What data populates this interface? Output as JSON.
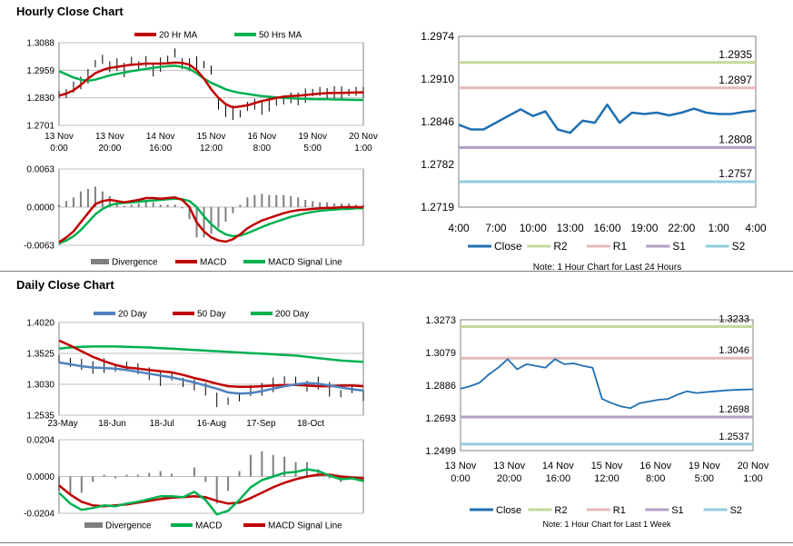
{
  "sections": {
    "hourly_title": "Hourly Close Chart",
    "daily_title": "Daily Close Chart"
  },
  "colors": {
    "red": "#c00000",
    "green": "#00b050",
    "blue": "#4f81bd",
    "close_blue": "#1f6fb2",
    "r2": "#c4d79b",
    "r1": "#e6b8b7",
    "s1": "#b1a0c7",
    "s2": "#92cddc",
    "divergence": "#7f7f7f",
    "price": "#000000"
  },
  "chart_data": [
    {
      "id": "hourly_price",
      "type": "line",
      "legend": [
        "20 Hr MA",
        "50 Hrs MA"
      ],
      "legend_placement": "top",
      "ylim": [
        1.2701,
        1.3088
      ],
      "yticks": [
        "1.3088",
        "1.2959",
        "1.2830",
        "1.2701"
      ],
      "xticks": [
        [
          "13 Nov",
          "0:00"
        ],
        [
          "13 Nov",
          "20:00"
        ],
        [
          "14 Nov",
          "16:00"
        ],
        [
          "15 Nov",
          "12:00"
        ],
        [
          "16 Nov",
          "8:00"
        ],
        [
          "19 Nov",
          "5:00"
        ],
        [
          "20 Nov",
          "1:00"
        ]
      ],
      "close": [
        1.2845,
        1.285,
        1.288,
        1.29,
        1.293,
        1.299,
        1.301,
        1.2975,
        1.2985,
        1.296,
        1.3005,
        1.298,
        1.3,
        1.296,
        1.2985,
        1.301,
        1.304,
        1.299,
        1.2985,
        1.299,
        1.2985,
        1.296,
        1.28,
        1.277,
        1.276,
        1.2755,
        1.279,
        1.28,
        1.278,
        1.28,
        1.281,
        1.282,
        1.283,
        1.2825,
        1.284,
        1.2855,
        1.286,
        1.285,
        1.2855,
        1.285,
        1.2855,
        1.286,
        1.2855
      ],
      "ma20": [
        1.284,
        1.285,
        1.2865,
        1.289,
        1.292,
        1.2945,
        1.296,
        1.297,
        1.2975,
        1.298,
        1.2985,
        1.2987,
        1.299,
        1.299,
        1.299,
        1.2992,
        1.2995,
        1.2993,
        1.2985,
        1.296,
        1.292,
        1.287,
        1.283,
        1.28,
        1.2785,
        1.279,
        1.2795,
        1.2805,
        1.2815,
        1.2822,
        1.283,
        1.2835,
        1.2838,
        1.284,
        1.2843,
        1.2847,
        1.285,
        1.2852,
        1.2853,
        1.2853,
        1.2854,
        1.2855,
        1.2856
      ],
      "ma50": [
        1.2955,
        1.294,
        1.2925,
        1.2915,
        1.291,
        1.2915,
        1.2925,
        1.2935,
        1.2942,
        1.2948,
        1.2955,
        1.296,
        1.2965,
        1.297,
        1.2975,
        1.2978,
        1.298,
        1.2975,
        1.2965,
        1.2945,
        1.292,
        1.29,
        1.2885,
        1.287,
        1.286,
        1.2853,
        1.2848,
        1.2843,
        1.2838,
        1.2835,
        1.2832,
        1.283,
        1.2828,
        1.2826,
        1.2825,
        1.2824,
        1.2823,
        1.2823,
        1.2822,
        1.2822,
        1.2821,
        1.282,
        1.282
      ]
    },
    {
      "id": "hourly_macd",
      "type": "line",
      "legend": [
        "Divergence",
        "MACD",
        "MACD Signal Line"
      ],
      "legend_placement": "bottom",
      "ylim": [
        -0.0063,
        0.0063
      ],
      "yticks": [
        "0.0063",
        "0.0000",
        "-0.0063"
      ],
      "macd": [
        -0.0058,
        -0.005,
        -0.004,
        -0.0025,
        -0.001,
        0.0005,
        0.001,
        0.0012,
        0.001,
        0.0008,
        0.001,
        0.0012,
        0.0015,
        0.0015,
        0.0014,
        0.0015,
        0.0016,
        0.0012,
        0.0,
        -0.0025,
        -0.004,
        -0.005,
        -0.0055,
        -0.0057,
        -0.0053,
        -0.0045,
        -0.0035,
        -0.0028,
        -0.0022,
        -0.0018,
        -0.0014,
        -0.001,
        -0.0007,
        -0.0005,
        -0.0004,
        -0.0003,
        -0.0002,
        -0.0001,
        -0.0001,
        0.0,
        0.0,
        0.0,
        0.0
      ],
      "signal": [
        -0.006,
        -0.0055,
        -0.0048,
        -0.0038,
        -0.0025,
        -0.0012,
        -0.0003,
        0.0003,
        0.0006,
        0.0007,
        0.0008,
        0.0009,
        0.001,
        0.0011,
        0.0012,
        0.0013,
        0.0014,
        0.0013,
        0.001,
        0.0,
        -0.0015,
        -0.0028,
        -0.0038,
        -0.0045,
        -0.0048,
        -0.0047,
        -0.0043,
        -0.0038,
        -0.0033,
        -0.0028,
        -0.0024,
        -0.002,
        -0.0016,
        -0.0013,
        -0.001,
        -0.0008,
        -0.0006,
        -0.0005,
        -0.0004,
        -0.0003,
        -0.0003,
        -0.0002,
        -0.0002
      ]
    },
    {
      "id": "hourly_pivots",
      "type": "line",
      "legend": [
        "Close",
        "R2",
        "R1",
        "S1",
        "S2"
      ],
      "legend_placement": "bottom",
      "ylim": [
        1.2719,
        1.2974
      ],
      "yticks": [
        "1.2974",
        "1.2910",
        "1.2846",
        "1.2782",
        "1.2719"
      ],
      "xticks": [
        "4:00",
        "7:00",
        "10:00",
        "13:00",
        "16:00",
        "19:00",
        "22:00",
        "1:00",
        "4:00"
      ],
      "levels": {
        "R2": 1.2935,
        "R1": 1.2897,
        "S1": 1.2808,
        "S2": 1.2757
      },
      "level_labels": {
        "R2": "1.2935",
        "R1": "1.2897",
        "S1": "1.2808",
        "S2": "1.2757"
      },
      "close": [
        1.2842,
        1.2835,
        1.2835,
        1.2845,
        1.2855,
        1.2865,
        1.2855,
        1.2862,
        1.2835,
        1.283,
        1.2848,
        1.2845,
        1.2872,
        1.2845,
        1.286,
        1.2858,
        1.286,
        1.2856,
        1.286,
        1.2866,
        1.286,
        1.2858,
        1.2858,
        1.2861,
        1.2863
      ],
      "note": "Note: 1 Hour Chart for Last 24 Hours"
    },
    {
      "id": "daily_price",
      "type": "line",
      "legend": [
        "20 Day",
        "50 Day",
        "200 Day"
      ],
      "legend_placement": "top",
      "ylim": [
        1.2535,
        1.402
      ],
      "yticks": [
        "1.4020",
        "1.3525",
        "1.3030",
        "1.2535"
      ],
      "xticks": [
        "23-May",
        "18-Jun",
        "18-Jul",
        "16-Aug",
        "17-Sep",
        "18-Oct"
      ],
      "close": [
        1.344,
        1.338,
        1.335,
        1.33,
        1.333,
        1.329,
        1.332,
        1.328,
        1.32,
        1.312,
        1.315,
        1.306,
        1.302,
        1.295,
        1.278,
        1.276,
        1.283,
        1.293,
        1.295,
        1.302,
        1.31,
        1.308,
        1.3,
        1.305,
        1.295,
        1.288,
        1.296,
        1.285
      ],
      "ma20": [
        1.338,
        1.335,
        1.332,
        1.33,
        1.329,
        1.328,
        1.326,
        1.323,
        1.32,
        1.317,
        1.314,
        1.31,
        1.306,
        1.301,
        1.296,
        1.29,
        1.288,
        1.289,
        1.292,
        1.296,
        1.3,
        1.303,
        1.305,
        1.304,
        1.301,
        1.298,
        1.295,
        1.293
      ],
      "ma50": [
        1.373,
        1.365,
        1.356,
        1.347,
        1.34,
        1.334,
        1.33,
        1.328,
        1.326,
        1.324,
        1.322,
        1.318,
        1.313,
        1.309,
        1.304,
        1.3,
        1.299,
        1.299,
        1.3,
        1.301,
        1.302,
        1.302,
        1.301,
        1.3,
        1.3,
        1.301,
        1.301,
        1.3
      ],
      "ma200": [
        1.36,
        1.362,
        1.363,
        1.3635,
        1.3635,
        1.3635,
        1.363,
        1.3625,
        1.362,
        1.361,
        1.36,
        1.359,
        1.358,
        1.357,
        1.356,
        1.355,
        1.354,
        1.353,
        1.352,
        1.351,
        1.35,
        1.349,
        1.347,
        1.345,
        1.343,
        1.341,
        1.34,
        1.339
      ]
    },
    {
      "id": "daily_macd",
      "type": "line",
      "legend": [
        "Divergence",
        "MACD",
        "MACD Signal Line"
      ],
      "legend_placement": "bottom",
      "ylim": [
        -0.0204,
        0.0204
      ],
      "yticks": [
        "0.0204",
        "0.0000",
        "-0.0204"
      ],
      "macd": [
        -0.009,
        -0.015,
        -0.0185,
        -0.0175,
        -0.016,
        -0.0165,
        -0.015,
        -0.014,
        -0.0125,
        -0.011,
        -0.011,
        -0.0115,
        -0.0085,
        -0.013,
        -0.021,
        -0.019,
        -0.013,
        -0.006,
        -0.002,
        0.0,
        0.002,
        0.0025,
        0.004,
        0.003,
        0.0005,
        -0.0015,
        -0.001,
        -0.0025
      ],
      "signal": [
        -0.005,
        -0.01,
        -0.014,
        -0.016,
        -0.0165,
        -0.016,
        -0.0155,
        -0.0145,
        -0.0135,
        -0.0125,
        -0.0118,
        -0.0115,
        -0.011,
        -0.0115,
        -0.0135,
        -0.015,
        -0.0145,
        -0.012,
        -0.009,
        -0.006,
        -0.0035,
        -0.0015,
        0.0,
        0.001,
        0.001,
        0.0,
        -0.0005,
        -0.001
      ]
    },
    {
      "id": "weekly_pivots",
      "type": "line",
      "legend": [
        "Close",
        "R2",
        "R1",
        "S1",
        "S2"
      ],
      "legend_placement": "bottom",
      "ylim": [
        1.2499,
        1.3273
      ],
      "yticks": [
        "1.3273",
        "1.3079",
        "1.2886",
        "1.2693",
        "1.2499"
      ],
      "xticks": [
        [
          "13 Nov",
          "0:00"
        ],
        [
          "13 Nov",
          "20:00"
        ],
        [
          "14 Nov",
          "16:00"
        ],
        [
          "15 Nov",
          "12:00"
        ],
        [
          "16 Nov",
          "8:00"
        ],
        [
          "19 Nov",
          "5:00"
        ],
        [
          "20 Nov",
          "1:00"
        ]
      ],
      "levels": {
        "R2": 1.3233,
        "R1": 1.3046,
        "S1": 1.2698,
        "S2": 1.2537
      },
      "level_labels": {
        "R2": "1.3233",
        "R1": "1.3046",
        "S1": "1.2698",
        "S2": "1.2537"
      },
      "close": [
        1.2865,
        1.288,
        1.29,
        1.295,
        1.299,
        1.304,
        1.298,
        1.301,
        1.3,
        1.299,
        1.304,
        1.301,
        1.3015,
        1.3,
        1.299,
        1.2805,
        1.278,
        1.276,
        1.275,
        1.278,
        1.279,
        1.28,
        1.2805,
        1.283,
        1.285,
        1.284,
        1.2845,
        1.285,
        1.2855,
        1.2858,
        1.286,
        1.2862
      ],
      "note": "Note: 1 Hour Chart for Last 1 Week"
    }
  ]
}
